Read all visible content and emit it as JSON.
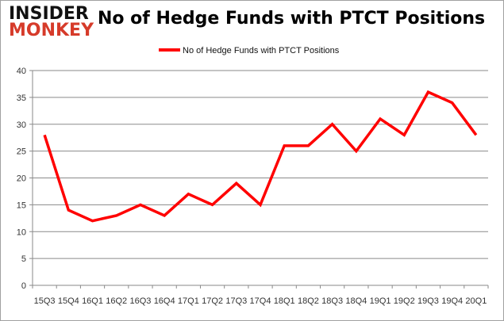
{
  "logo": {
    "line1": "INSIDER",
    "line2": "MONKEY"
  },
  "chart_data": {
    "type": "line",
    "title": "No of Hedge Funds with PTCT Positions",
    "categories": [
      "15Q3",
      "15Q4",
      "16Q1",
      "16Q2",
      "16Q3",
      "16Q4",
      "17Q1",
      "17Q2",
      "17Q3",
      "17Q4",
      "18Q1",
      "18Q2",
      "18Q3",
      "18Q4",
      "19Q1",
      "19Q2",
      "19Q3",
      "19Q4",
      "20Q1"
    ],
    "series": [
      {
        "name": "No of Hedge Funds with PTCT Positions",
        "color": "#ff0000",
        "values": [
          28,
          14,
          12,
          13,
          15,
          13,
          17,
          15,
          19,
          15,
          26,
          26,
          30,
          25,
          31,
          28,
          36,
          34,
          28
        ]
      }
    ],
    "ylim": [
      0,
      40
    ],
    "yticks": [
      0,
      5,
      10,
      15,
      20,
      25,
      30,
      35,
      40
    ],
    "grid": true,
    "legend": "top-center"
  }
}
